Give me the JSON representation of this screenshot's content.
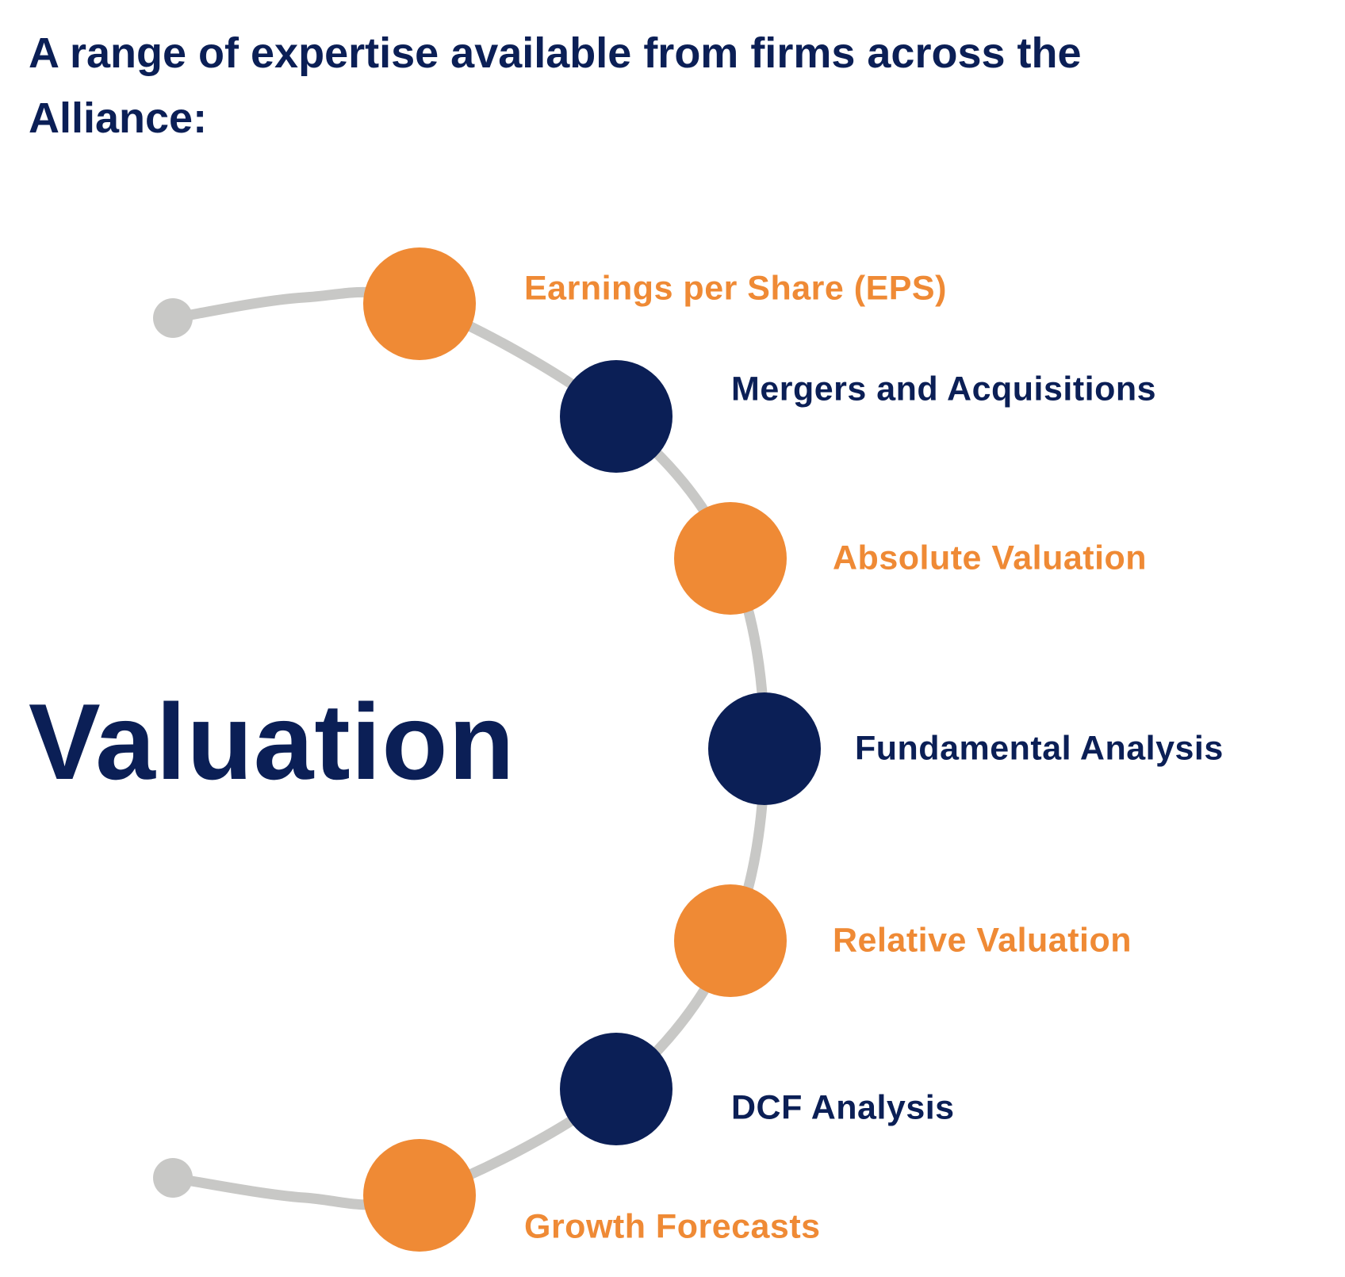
{
  "title": "A range of expertise available from firms across the Alliance:",
  "center_label": "Valuation",
  "colors": {
    "navy": "#0b1f56",
    "orange": "#ef8a35",
    "track": "#c8c8c6"
  },
  "items": [
    {
      "label": "Earnings per Share (EPS)",
      "color": "orange"
    },
    {
      "label": "Mergers and Acquisitions",
      "color": "navy"
    },
    {
      "label": "Absolute Valuation",
      "color": "orange"
    },
    {
      "label": "Fundamental Analysis",
      "color": "navy"
    },
    {
      "label": "Relative Valuation",
      "color": "orange"
    },
    {
      "label": "DCF Analysis",
      "color": "navy"
    },
    {
      "label": "Growth Forecasts",
      "color": "orange"
    }
  ]
}
